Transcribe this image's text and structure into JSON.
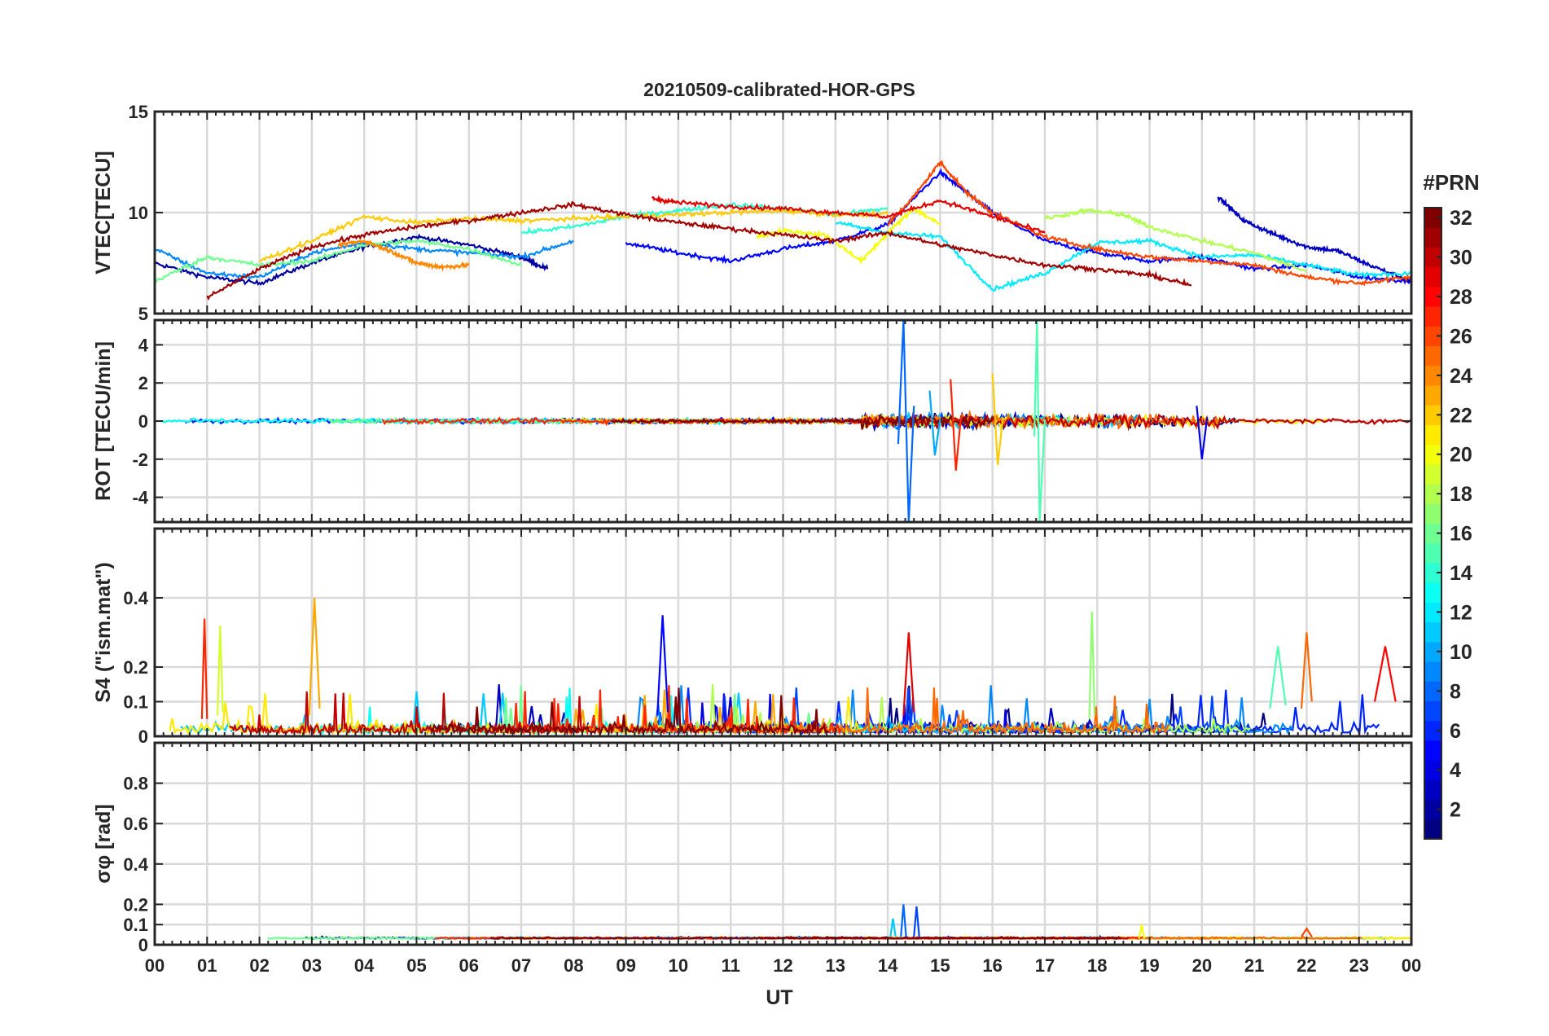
{
  "chart_data": {
    "type": "line",
    "title": "20210509-calibrated-HOR-GPS",
    "xlabel": "UT",
    "x_tick_labels": [
      "00",
      "01",
      "02",
      "03",
      "04",
      "05",
      "06",
      "07",
      "08",
      "09",
      "10",
      "11",
      "12",
      "13",
      "14",
      "15",
      "16",
      "17",
      "18",
      "19",
      "20",
      "21",
      "22",
      "23",
      "00"
    ],
    "xlim": [
      0,
      24
    ],
    "grid": true,
    "panels": [
      {
        "name": "vtec",
        "ylabel": "VTEC[TECU]",
        "ylim": [
          5,
          15
        ],
        "yticks": [
          5,
          10,
          15
        ],
        "ytick_labels": [
          "5",
          "10",
          "15"
        ],
        "series": [
          {
            "prn": 2,
            "x": [
              0,
              1,
              2,
              3,
              4,
              5,
              6,
              7,
              7.5
            ],
            "y": [
              7.5,
              6.8,
              6.5,
              7.5,
              8.3,
              8.8,
              8.4,
              7.8,
              7.2
            ]
          },
          {
            "prn": 5,
            "x": [
              9,
              10,
              11,
              12,
              13,
              14,
              15,
              15.5,
              16,
              17,
              18,
              19,
              20,
              21,
              22,
              23,
              24
            ],
            "y": [
              8.5,
              8.0,
              7.6,
              8.2,
              8.6,
              9.4,
              12.0,
              11.0,
              10.0,
              8.6,
              8.0,
              7.6,
              7.8,
              7.2,
              7.4,
              6.8,
              6.6
            ]
          },
          {
            "prn": 3,
            "x": [
              20.3,
              20.8,
              21.4,
              22,
              22.6,
              23.2,
              24
            ],
            "y": [
              10.8,
              9.6,
              8.9,
              8.3,
              8.1,
              7.4,
              6.6
            ]
          },
          {
            "prn": 9,
            "x": [
              0,
              1,
              2,
              3,
              4,
              5,
              6,
              7,
              8
            ],
            "y": [
              8.2,
              7.0,
              6.8,
              8.0,
              8.5,
              8.2,
              8.0,
              7.8,
              8.6
            ]
          },
          {
            "prn": 12,
            "x": [
              13,
              14,
              15,
              16,
              17,
              18,
              19,
              20,
              21,
              22,
              23,
              24
            ],
            "y": [
              9.5,
              9.0,
              8.8,
              6.2,
              7.0,
              8.5,
              8.6,
              7.8,
              7.9,
              7.4,
              6.9,
              7.0
            ]
          },
          {
            "prn": 14,
            "x": [
              7,
              8,
              9,
              10,
              11,
              12,
              13,
              14
            ],
            "y": [
              9.0,
              9.3,
              9.8,
              10.1,
              10.4,
              10.2,
              9.9,
              10.2
            ]
          },
          {
            "prn": 16,
            "x": [
              0,
              1,
              2,
              3,
              4,
              5,
              6,
              7
            ],
            "y": [
              6.6,
              7.8,
              7.4,
              7.6,
              8.4,
              8.6,
              8.2,
              7.4
            ]
          },
          {
            "prn": 18,
            "x": [
              17,
              17.8,
              18.5,
              19,
              20,
              21,
              22
            ],
            "y": [
              9.7,
              10.1,
              9.9,
              9.3,
              8.6,
              8.0,
              7.1
            ]
          },
          {
            "prn": 20,
            "x": [
              11.5,
              12,
              12.8,
              13.5,
              14,
              14.5,
              15
            ],
            "y": [
              8.8,
              9.1,
              8.9,
              7.6,
              9.0,
              10.2,
              9.4
            ]
          },
          {
            "prn": 22,
            "x": [
              2,
              3,
              4,
              5,
              6,
              7,
              8,
              9,
              10,
              11,
              12,
              13,
              14
            ],
            "y": [
              7.6,
              8.6,
              9.8,
              9.5,
              9.7,
              9.6,
              9.7,
              9.8,
              9.9,
              10.0,
              10.1,
              9.9,
              9.9
            ]
          },
          {
            "prn": 24,
            "x": [
              3.5,
              4,
              4.5,
              5,
              5.5,
              6
            ],
            "y": [
              8.4,
              8.6,
              8.1,
              7.5,
              7.3,
              7.4
            ]
          },
          {
            "prn": 26,
            "x": [
              14,
              14.5,
              15,
              15.5,
              16,
              17,
              18,
              19,
              20,
              21,
              22,
              23,
              24
            ],
            "y": [
              9.4,
              10.8,
              12.5,
              11.0,
              10.0,
              8.8,
              8.2,
              7.8,
              7.6,
              7.4,
              6.8,
              6.5,
              6.8
            ]
          },
          {
            "prn": 29,
            "x": [
              9.5,
              10,
              11,
              12,
              13,
              14,
              15,
              16,
              17
            ],
            "y": [
              10.7,
              10.5,
              10.3,
              10.2,
              10.0,
              9.8,
              10.6,
              9.8,
              9.0
            ]
          },
          {
            "prn": 31,
            "x": [
              1,
              2,
              3,
              4,
              5,
              6,
              7,
              8,
              9,
              10,
              11,
              12,
              13,
              14,
              15,
              16,
              17,
              18,
              19,
              19.8
            ],
            "y": [
              5.8,
              7.2,
              8.3,
              8.9,
              9.3,
              9.6,
              10.0,
              10.4,
              9.9,
              9.5,
              9.2,
              8.9,
              8.6,
              9.0,
              8.4,
              7.9,
              7.4,
              7.2,
              6.9,
              6.4
            ]
          }
        ]
      },
      {
        "name": "rot",
        "ylabel": "ROT [TECU/min]",
        "ylim": [
          -5.3,
          5.3
        ],
        "yticks": [
          -4,
          -2,
          0,
          2,
          4
        ],
        "ytick_labels": [
          "-4",
          "-2",
          "0",
          "2",
          "4"
        ],
        "series": [
          {
            "prn": 8,
            "x": [
              14.2,
              14.3,
              14.4,
              14.5
            ],
            "y": [
              -1.2,
              5.3,
              -5.3,
              0.8
            ]
          },
          {
            "prn": 15,
            "x": [
              16.8,
              16.85,
              16.9,
              17
            ],
            "y": [
              -0.8,
              5.3,
              -5.3,
              0.1
            ]
          },
          {
            "prn": 27,
            "x": [
              15.2,
              15.3,
              15.4
            ],
            "y": [
              2.2,
              -2.6,
              0.3
            ]
          },
          {
            "prn": 22,
            "x": [
              16,
              16.1,
              16.2
            ],
            "y": [
              2.5,
              -2.3,
              0.2
            ]
          },
          {
            "prn": 10,
            "x": [
              14.8,
              14.9,
              15
            ],
            "y": [
              1.6,
              -1.8,
              0.1
            ]
          },
          {
            "prn": 4,
            "x": [
              19.9,
              20.0,
              20.1
            ],
            "y": [
              0.8,
              -2.0,
              0.2
            ]
          }
        ]
      },
      {
        "name": "s4",
        "ylabel": "S4 (\"ism.mat\")",
        "ylim": [
          0,
          0.6
        ],
        "yticks": [
          0,
          0.1,
          0.2,
          0.4
        ],
        "ytick_labels": [
          "0",
          "0.1",
          "0.2",
          "0.4"
        ],
        "series": [
          {
            "prn": 23,
            "x": [
              2.95,
              3.05,
              3.15
            ],
            "y": [
              0.06,
              0.4,
              0.08
            ]
          },
          {
            "prn": 5,
            "x": [
              9.6,
              9.7,
              9.8
            ],
            "y": [
              0.06,
              0.35,
              0.07
            ]
          },
          {
            "prn": 17,
            "x": [
              17.85,
              17.9,
              17.95
            ],
            "y": [
              0.05,
              0.36,
              0.06
            ]
          },
          {
            "prn": 27,
            "x": [
              0.9,
              0.95,
              1.0
            ],
            "y": [
              0.05,
              0.34,
              0.05
            ]
          },
          {
            "prn": 19,
            "x": [
              1.2,
              1.25,
              1.3
            ],
            "y": [
              0.06,
              0.32,
              0.07
            ]
          },
          {
            "prn": 25,
            "x": [
              21.9,
              22,
              22.1
            ],
            "y": [
              0.08,
              0.3,
              0.1
            ]
          },
          {
            "prn": 29,
            "x": [
              14.3,
              14.4,
              14.5
            ],
            "y": [
              0.06,
              0.3,
              0.07
            ]
          },
          {
            "prn": 15,
            "x": [
              21.3,
              21.45,
              21.6
            ],
            "y": [
              0.08,
              0.26,
              0.09
            ]
          },
          {
            "prn": 28,
            "x": [
              23.3,
              23.5,
              23.7
            ],
            "y": [
              0.1,
              0.26,
              0.1
            ]
          }
        ]
      },
      {
        "name": "sigma_phi",
        "ylabel": "σφ [rad]",
        "ylim": [
          0,
          1
        ],
        "yticks": [
          0,
          0.1,
          0.2,
          0.4,
          0.6,
          0.8
        ],
        "ytick_labels": [
          "0",
          "0.1",
          "0.2",
          "0.4",
          "0.6",
          "0.8"
        ],
        "series": [
          {
            "prn": 8,
            "x": [
              14.25,
              14.3,
              14.35
            ],
            "y": [
              0.04,
              0.2,
              0.04
            ]
          },
          {
            "prn": 7,
            "x": [
              14.5,
              14.55,
              14.6
            ],
            "y": [
              0.04,
              0.19,
              0.04
            ]
          },
          {
            "prn": 11,
            "x": [
              14.05,
              14.1,
              14.15
            ],
            "y": [
              0.04,
              0.13,
              0.04
            ]
          },
          {
            "prn": 20,
            "x": [
              18.8,
              18.85,
              18.9
            ],
            "y": [
              0.03,
              0.1,
              0.03
            ]
          },
          {
            "prn": 26,
            "x": [
              21.9,
              22,
              22.1
            ],
            "y": [
              0.04,
              0.08,
              0.04
            ]
          }
        ]
      }
    ],
    "colorbar": {
      "label": "#PRN",
      "range": [
        1,
        32
      ],
      "tick_values": [
        2,
        4,
        6,
        8,
        10,
        12,
        14,
        16,
        18,
        20,
        22,
        24,
        26,
        28,
        30,
        32
      ],
      "tick_labels": [
        "2",
        "4",
        "6",
        "8",
        "10",
        "12",
        "14",
        "16",
        "18",
        "20",
        "22",
        "24",
        "26",
        "28",
        "30",
        "32"
      ],
      "colormap": "jet"
    }
  }
}
